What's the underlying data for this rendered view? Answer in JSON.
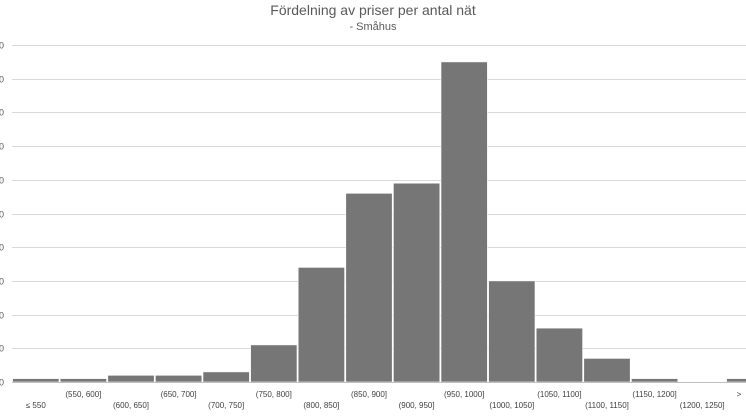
{
  "chart_data": {
    "type": "bar",
    "title": "Fördelning av priser per antal nät",
    "subtitle": "- Småhus",
    "xlabel": "",
    "ylabel": "",
    "categories": [
      "≤ 550",
      "(550, 600]",
      "(600, 650]",
      "(650, 700]",
      "(700, 750]",
      "(750, 800]",
      "(800, 850]",
      "(850, 900]",
      "(900, 950]",
      "(950, 1000]",
      "(1000, 1050]",
      "(1050, 1100]",
      "(1100, 1150]",
      "(1150, 1200]",
      "(1200, 1250]",
      ">"
    ],
    "values": [
      1,
      1,
      2,
      2,
      3,
      11,
      34,
      56,
      59,
      95,
      30,
      16,
      7,
      1,
      0,
      1
    ],
    "y_tick_labels": [
      "0",
      "0",
      "0",
      "0",
      "0",
      "0",
      "0",
      "0",
      "0",
      "0",
      "0"
    ],
    "ylim": [
      0,
      100
    ],
    "grid": true,
    "legend": "none",
    "colors": {
      "bar": "#767676",
      "bar_edge": "#ffffff",
      "grid": "#d9d9d9",
      "axis": "#bfbfbf",
      "text": "#595959"
    }
  }
}
